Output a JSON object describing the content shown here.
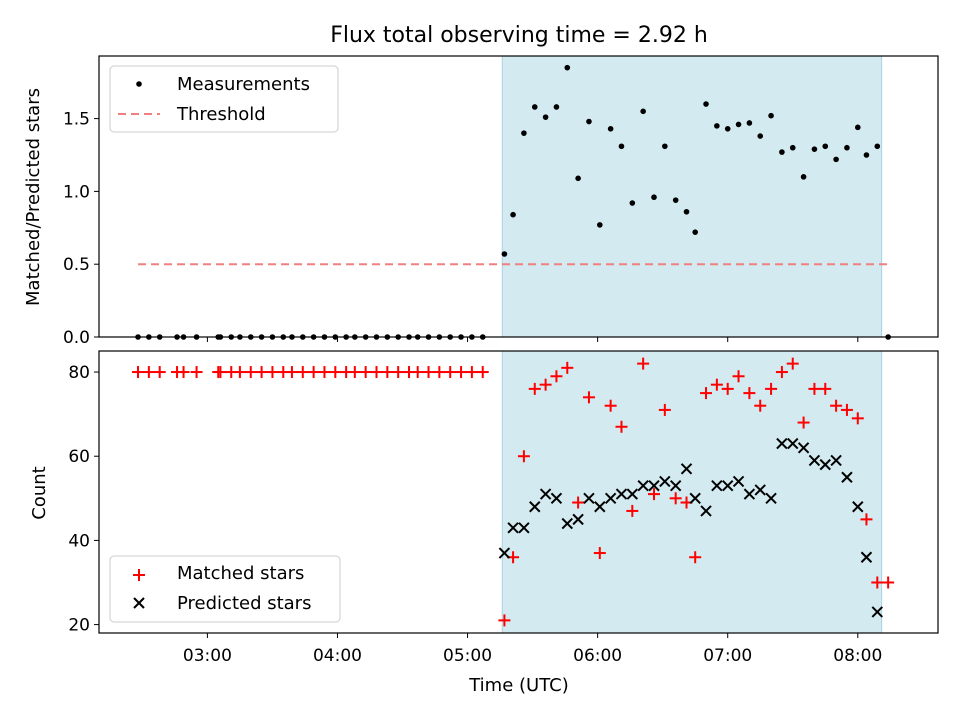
{
  "chart_data": [
    {
      "type": "scatter",
      "title": "Flux total observing time = 2.92 h",
      "xlabel": "",
      "ylabel": "Matched/Predicted stars",
      "xlim": [
        "02:10",
        "08:37"
      ],
      "ylim": [
        0,
        1.93
      ],
      "yticks": [
        "0.0",
        "0.5",
        "1.0",
        "1.5"
      ],
      "xticks": [
        "03:00",
        "04:00",
        "05:00",
        "06:00",
        "07:00",
        "08:00"
      ],
      "xticklabels_visible": false,
      "shaded_span": [
        "05:16",
        "08:11"
      ],
      "shade_color": "#d3eaf0",
      "legend": "upper-left",
      "series": [
        {
          "name": "Measurements",
          "kind": "scatter",
          "color": "#000000",
          "points": [
            [
              "02:28",
              0
            ],
            [
              "02:33",
              0
            ],
            [
              "02:38",
              0
            ],
            [
              "02:46",
              0
            ],
            [
              "02:49",
              0
            ],
            [
              "02:55",
              0
            ],
            [
              "03:05",
              0
            ],
            [
              "03:06",
              0
            ],
            [
              "03:11",
              0
            ],
            [
              "03:15",
              0
            ],
            [
              "03:20",
              0
            ],
            [
              "03:25",
              0
            ],
            [
              "03:30",
              0
            ],
            [
              "03:35",
              0
            ],
            [
              "03:39",
              0
            ],
            [
              "03:44",
              0
            ],
            [
              "03:49",
              0
            ],
            [
              "03:54",
              0
            ],
            [
              "03:59",
              0
            ],
            [
              "04:04",
              0
            ],
            [
              "04:08",
              0
            ],
            [
              "04:13",
              0
            ],
            [
              "04:18",
              0
            ],
            [
              "04:23",
              0
            ],
            [
              "04:28",
              0
            ],
            [
              "04:33",
              0
            ],
            [
              "04:37",
              0
            ],
            [
              "04:42",
              0
            ],
            [
              "04:47",
              0
            ],
            [
              "04:52",
              0
            ],
            [
              "04:57",
              0
            ],
            [
              "05:02",
              0
            ],
            [
              "05:07",
              0
            ],
            [
              "05:17",
              0.57
            ],
            [
              "05:21",
              0.84
            ],
            [
              "05:26",
              1.4
            ],
            [
              "05:31",
              1.58
            ],
            [
              "05:36",
              1.51
            ],
            [
              "05:41",
              1.58
            ],
            [
              "05:46",
              1.85
            ],
            [
              "05:51",
              1.09
            ],
            [
              "05:56",
              1.48
            ],
            [
              "06:01",
              0.77
            ],
            [
              "06:06",
              1.43
            ],
            [
              "06:11",
              1.31
            ],
            [
              "06:16",
              0.92
            ],
            [
              "06:21",
              1.55
            ],
            [
              "06:26",
              0.96
            ],
            [
              "06:31",
              1.31
            ],
            [
              "06:36",
              0.94
            ],
            [
              "06:41",
              0.86
            ],
            [
              "06:45",
              0.72
            ],
            [
              "06:50",
              1.6
            ],
            [
              "06:55",
              1.45
            ],
            [
              "07:00",
              1.43
            ],
            [
              "07:05",
              1.46
            ],
            [
              "07:10",
              1.47
            ],
            [
              "07:15",
              1.38
            ],
            [
              "07:20",
              1.52
            ],
            [
              "07:25",
              1.27
            ],
            [
              "07:30",
              1.3
            ],
            [
              "07:35",
              1.1
            ],
            [
              "07:40",
              1.29
            ],
            [
              "07:45",
              1.31
            ],
            [
              "07:50",
              1.22
            ],
            [
              "07:55",
              1.3
            ],
            [
              "08:00",
              1.44
            ],
            [
              "08:04",
              1.25
            ],
            [
              "08:09",
              1.31
            ],
            [
              "08:14",
              0
            ]
          ]
        },
        {
          "name": "Threshold",
          "kind": "line",
          "color": "#f08080",
          "dashed": true,
          "points": [
            [
              "02:28",
              0.5
            ],
            [
              "08:14",
              0.5
            ]
          ]
        }
      ]
    },
    {
      "type": "scatter",
      "xlabel": "Time (UTC)",
      "ylabel": "Count",
      "xlim": [
        "02:10",
        "08:37"
      ],
      "ylim": [
        18,
        85
      ],
      "yticks": [
        "20",
        "40",
        "60",
        "80"
      ],
      "xticks": [
        "03:00",
        "04:00",
        "05:00",
        "06:00",
        "07:00",
        "08:00"
      ],
      "shaded_span": [
        "05:16",
        "08:11"
      ],
      "shade_color": "#d3eaf0",
      "legend": "lower-left",
      "series": [
        {
          "name": "Matched stars",
          "marker": "+",
          "color": "#ff0000",
          "points": [
            [
              "02:28",
              80
            ],
            [
              "02:33",
              80
            ],
            [
              "02:38",
              80
            ],
            [
              "02:46",
              80
            ],
            [
              "02:49",
              80
            ],
            [
              "02:55",
              80
            ],
            [
              "03:05",
              80
            ],
            [
              "03:06",
              80
            ],
            [
              "03:11",
              80
            ],
            [
              "03:15",
              80
            ],
            [
              "03:20",
              80
            ],
            [
              "03:25",
              80
            ],
            [
              "03:30",
              80
            ],
            [
              "03:35",
              80
            ],
            [
              "03:39",
              80
            ],
            [
              "03:44",
              80
            ],
            [
              "03:49",
              80
            ],
            [
              "03:54",
              80
            ],
            [
              "03:59",
              80
            ],
            [
              "04:04",
              80
            ],
            [
              "04:08",
              80
            ],
            [
              "04:13",
              80
            ],
            [
              "04:18",
              80
            ],
            [
              "04:23",
              80
            ],
            [
              "04:28",
              80
            ],
            [
              "04:33",
              80
            ],
            [
              "04:37",
              80
            ],
            [
              "04:42",
              80
            ],
            [
              "04:47",
              80
            ],
            [
              "04:52",
              80
            ],
            [
              "04:57",
              80
            ],
            [
              "05:02",
              80
            ],
            [
              "05:07",
              80
            ],
            [
              "05:17",
              21
            ],
            [
              "05:21",
              36
            ],
            [
              "05:26",
              60
            ],
            [
              "05:31",
              76
            ],
            [
              "05:36",
              77
            ],
            [
              "05:41",
              79
            ],
            [
              "05:46",
              81
            ],
            [
              "05:51",
              49
            ],
            [
              "05:56",
              74
            ],
            [
              "06:01",
              37
            ],
            [
              "06:06",
              72
            ],
            [
              "06:11",
              67
            ],
            [
              "06:16",
              47
            ],
            [
              "06:21",
              82
            ],
            [
              "06:26",
              51
            ],
            [
              "06:31",
              71
            ],
            [
              "06:36",
              50
            ],
            [
              "06:41",
              49
            ],
            [
              "06:45",
              36
            ],
            [
              "06:50",
              75
            ],
            [
              "06:55",
              77
            ],
            [
              "07:00",
              76
            ],
            [
              "07:05",
              79
            ],
            [
              "07:10",
              75
            ],
            [
              "07:15",
              72
            ],
            [
              "07:20",
              76
            ],
            [
              "07:25",
              80
            ],
            [
              "07:30",
              82
            ],
            [
              "07:35",
              68
            ],
            [
              "07:40",
              76
            ],
            [
              "07:45",
              76
            ],
            [
              "07:50",
              72
            ],
            [
              "07:55",
              71
            ],
            [
              "08:00",
              69
            ],
            [
              "08:04",
              45
            ],
            [
              "08:09",
              30
            ],
            [
              "08:14",
              30
            ]
          ]
        },
        {
          "name": "Predicted stars",
          "marker": "x",
          "color": "#000000",
          "points": [
            [
              "05:17",
              37
            ],
            [
              "05:21",
              43
            ],
            [
              "05:26",
              43
            ],
            [
              "05:31",
              48
            ],
            [
              "05:36",
              51
            ],
            [
              "05:41",
              50
            ],
            [
              "05:46",
              44
            ],
            [
              "05:51",
              45
            ],
            [
              "05:56",
              50
            ],
            [
              "06:01",
              48
            ],
            [
              "06:06",
              50
            ],
            [
              "06:11",
              51
            ],
            [
              "06:16",
              51
            ],
            [
              "06:21",
              53
            ],
            [
              "06:26",
              53
            ],
            [
              "06:31",
              54
            ],
            [
              "06:36",
              53
            ],
            [
              "06:41",
              57
            ],
            [
              "06:45",
              50
            ],
            [
              "06:50",
              47
            ],
            [
              "06:55",
              53
            ],
            [
              "07:00",
              53
            ],
            [
              "07:05",
              54
            ],
            [
              "07:10",
              51
            ],
            [
              "07:15",
              52
            ],
            [
              "07:20",
              50
            ],
            [
              "07:25",
              63
            ],
            [
              "07:30",
              63
            ],
            [
              "07:35",
              62
            ],
            [
              "07:40",
              59
            ],
            [
              "07:45",
              58
            ],
            [
              "07:50",
              59
            ],
            [
              "07:55",
              55
            ],
            [
              "08:00",
              48
            ],
            [
              "08:04",
              36
            ],
            [
              "08:09",
              23
            ]
          ]
        }
      ]
    }
  ]
}
